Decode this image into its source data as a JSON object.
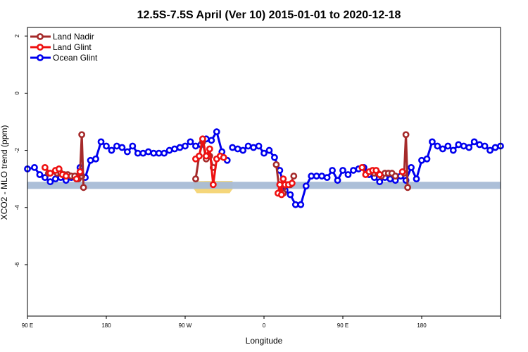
{
  "chart_data": {
    "type": "line",
    "title": "12.5S-7.5S April (Ver 10)   2015-01-01 to 2020-12-18",
    "xlabel": "Longitude",
    "ylabel": "XCO2 - MLO trend (ppm)",
    "xlim": [
      -90,
      180
    ],
    "ylim": [
      -7.8,
      2.3
    ],
    "x_ticks": [
      {
        "value": -90,
        "label": "90 E"
      },
      {
        "value": -45,
        "label": "180"
      },
      {
        "value": 0,
        "label": "90 W"
      },
      {
        "value": 45,
        "label": "0"
      },
      {
        "value": 90,
        "label": "90 E"
      },
      {
        "value": 135,
        "label": "180"
      }
    ],
    "y_ticks": [
      {
        "value": 2,
        "label": "2"
      },
      {
        "value": 0,
        "label": "0"
      },
      {
        "value": -2,
        "label": "-2"
      },
      {
        "value": -4,
        "label": "-4"
      },
      {
        "value": -6,
        "label": "-6"
      }
    ],
    "legend": {
      "position": "top-left"
    },
    "reference_band": {
      "y_range": [
        -3.35,
        -3.1
      ],
      "color": "#a8bcd6"
    },
    "land_bands": [
      {
        "x_range": [
          5,
          27
        ],
        "color": "#f5d67a"
      },
      {
        "x_range": [
          11,
          27
        ],
        "color": "#f5d67a"
      }
    ],
    "series": [
      {
        "name": "Land Nadir",
        "color": "#a52a2a",
        "segments": [
          {
            "x": [
              -78,
              -73,
              -71,
              -69,
              -67,
              -65,
              -63,
              -61,
              -59
            ],
            "y": [
              -2.8,
              -2.8,
              -2.8,
              -2.85,
              -2.85,
              -2.9,
              -2.9,
              -3.0,
              -2.9
            ]
          },
          {
            "x": [
              -60,
              -59,
              -58
            ],
            "y": [
              -2.8,
              -1.45,
              -3.3
            ]
          },
          {
            "x": [
              6,
              8,
              10,
              12,
              14,
              16
            ],
            "y": [
              -3.0,
              -2.2,
              -1.7,
              -2.3,
              -2.2,
              -2.6
            ]
          },
          {
            "x": [
              52,
              54,
              56,
              58,
              60,
              62
            ],
            "y": [
              -2.5,
              -3.5,
              -3.5,
              -3.2,
              -3.2,
              -2.9
            ]
          },
          {
            "x": [
              108,
              110,
              112,
              114,
              116,
              118,
              120
            ],
            "y": [
              -2.8,
              -2.8,
              -2.9,
              -2.8,
              -2.8,
              -2.8,
              -2.9
            ]
          },
          {
            "x": [
              125,
              126,
              127
            ],
            "y": [
              -2.8,
              -1.45,
              -3.3
            ]
          }
        ]
      },
      {
        "name": "Land Glint",
        "color": "#ee1111",
        "segments": [
          {
            "x": [
              -80,
              -77,
              -74,
              -72,
              -70,
              -68
            ],
            "y": [
              -2.6,
              -2.8,
              -2.7,
              -2.65,
              -2.85,
              -2.9
            ]
          },
          {
            "x": [
              -62,
              -60
            ],
            "y": [
              -3.0,
              -2.75
            ]
          },
          {
            "x": [
              6,
              8,
              10,
              12,
              14,
              16,
              18,
              20,
              22
            ],
            "y": [
              -2.3,
              -2.2,
              -1.6,
              -2.2,
              -1.95,
              -3.2,
              -2.3,
              -2.2,
              -2.25
            ]
          },
          {
            "x": [
              53,
              54,
              55,
              56,
              57,
              59,
              61
            ],
            "y": [
              -3.5,
              -3.2,
              -3.55,
              -3.0,
              -3.2,
              -3.2,
              -3.15
            ]
          },
          {
            "x": [
              101,
              103,
              105,
              107,
              109,
              111
            ],
            "y": [
              -2.6,
              -2.85,
              -2.75,
              -2.7,
              -2.7,
              -2.85
            ]
          },
          {
            "x": [
              124
            ],
            "y": [
              -2.75
            ]
          }
        ]
      },
      {
        "name": "Ocean Glint",
        "color": "#0000ee",
        "segments": [
          {
            "x": [
              -90,
              -86,
              -83,
              -80,
              -77,
              -74,
              -71,
              -68,
              -65,
              -62,
              -60,
              -57,
              -54,
              -51,
              -48,
              -45,
              -42,
              -39,
              -36,
              -33,
              -30,
              -27,
              -24,
              -21,
              -18,
              -15,
              -12,
              -9,
              -6,
              -3,
              0,
              3,
              6,
              9,
              12,
              15,
              18,
              21,
              24
            ],
            "y": [
              -2.65,
              -2.6,
              -2.85,
              -2.95,
              -3.1,
              -3.0,
              -2.95,
              -3.05,
              -2.95,
              -3.0,
              -2.6,
              -2.95,
              -2.35,
              -2.3,
              -1.7,
              -1.85,
              -2.0,
              -1.85,
              -1.9,
              -2.05,
              -1.85,
              -2.1,
              -2.1,
              -2.05,
              -2.1,
              -2.1,
              -2.1,
              -2.0,
              -1.95,
              -1.9,
              -1.85,
              -1.7,
              -1.85,
              -1.8,
              -1.6,
              -1.65,
              -1.35,
              -2.05,
              -2.35
            ]
          },
          {
            "x": [
              27,
              30,
              33,
              36,
              39,
              42,
              45,
              48,
              51,
              54,
              57,
              60,
              63,
              66,
              69,
              72,
              75,
              78,
              81,
              84,
              87,
              90,
              93,
              96,
              99,
              102,
              105,
              108,
              111,
              114,
              117,
              120,
              123,
              126,
              129,
              132,
              135,
              138,
              141,
              144,
              147,
              150,
              153,
              156,
              159,
              162,
              165,
              168,
              171,
              174,
              177,
              180
            ],
            "y": [
              -1.9,
              -1.95,
              -2.0,
              -1.85,
              -1.9,
              -1.85,
              -2.1,
              -2.0,
              -2.25,
              -2.7,
              -3.4,
              -3.55,
              -3.9,
              -3.9,
              -3.25,
              -2.9,
              -2.9,
              -2.9,
              -2.95,
              -2.7,
              -3.05,
              -2.7,
              -2.85,
              -2.7,
              -2.65,
              -2.6,
              -2.85,
              -2.95,
              -3.1,
              -2.95,
              -3.0,
              -3.05,
              -2.9,
              -3.05,
              -2.6,
              -3.0,
              -2.35,
              -2.3,
              -1.7,
              -1.85,
              -1.95,
              -1.85,
              -2.0,
              -1.8,
              -1.85,
              -1.9,
              -1.7,
              -1.8,
              -1.85,
              -2.0,
              -1.9,
              -1.85
            ]
          }
        ]
      }
    ]
  }
}
